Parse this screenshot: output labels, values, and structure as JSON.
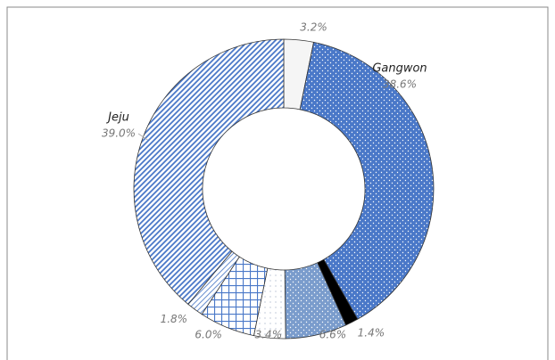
{
  "chart_data": {
    "type": "donut",
    "categories": [
      null,
      "Gangwon",
      null,
      null,
      null,
      null,
      null,
      "Jeju"
    ],
    "values": [
      3.2,
      38.6,
      1.4,
      6.6,
      3.4,
      6.0,
      1.8,
      39.0
    ],
    "value_labels": [
      "3.2%",
      "38.6%",
      "1.4%",
      "6.6%",
      "3.4%",
      "6.0%",
      "1.8%",
      "39.0%"
    ],
    "colors": [
      "#f5f5f5",
      "#4a78c8",
      "#000000",
      "#7a9ccc",
      "#9aa8c0",
      "#4a78c8",
      "#6a90d0",
      "#4a78c8"
    ],
    "patterns": [
      "solid",
      "dots",
      "solid",
      "dots",
      "sparse-dots",
      "grid",
      "diagonal",
      "stripes"
    ]
  }
}
